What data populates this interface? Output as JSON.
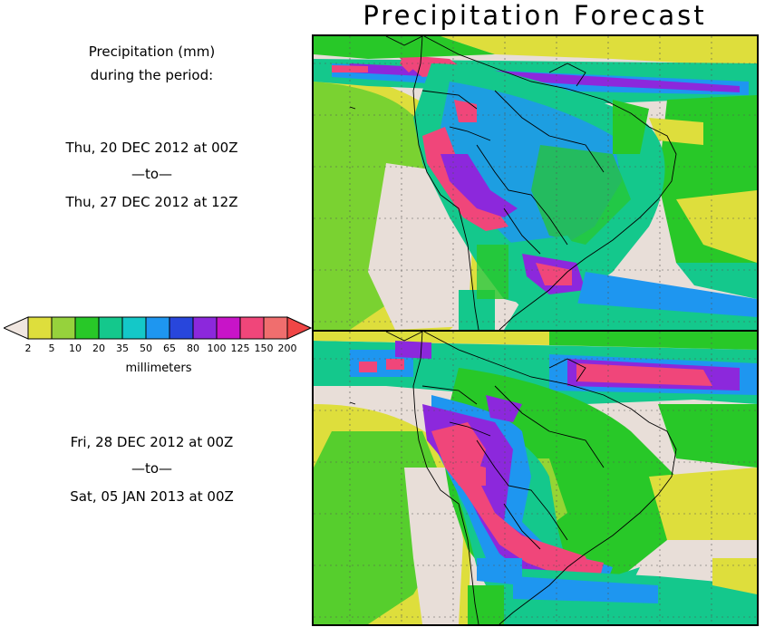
{
  "title": "Precipitation Forecast",
  "description": {
    "line1": "Precipitation (mm)",
    "line2": "during the period:"
  },
  "period1": {
    "start": "Thu, 20 DEC 2012 at 00Z",
    "separator": "—to—",
    "end": "Thu, 27 DEC 2012 at 12Z"
  },
  "period2": {
    "start": "Fri, 28 DEC 2012 at 00Z",
    "separator": "—to—",
    "end": "Sat, 05 JAN 2013 at 00Z"
  },
  "legend": {
    "units": "millimeters",
    "ticks": [
      "2",
      "5",
      "10",
      "20",
      "35",
      "50",
      "65",
      "80",
      "100",
      "125",
      "150",
      "200"
    ],
    "colors": {
      "under": "#f0e6e0",
      "bins": [
        "#dede3c",
        "#96d23c",
        "#28c828",
        "#14c88c",
        "#14c8c8",
        "#1e96f0",
        "#2846dc",
        "#8c28dc",
        "#c814c8",
        "#f0467a",
        "#f06e6e"
      ],
      "over": "#f04646"
    }
  },
  "map": {
    "ocean_color": "#e8ded8",
    "grid_color": "#555555"
  }
}
